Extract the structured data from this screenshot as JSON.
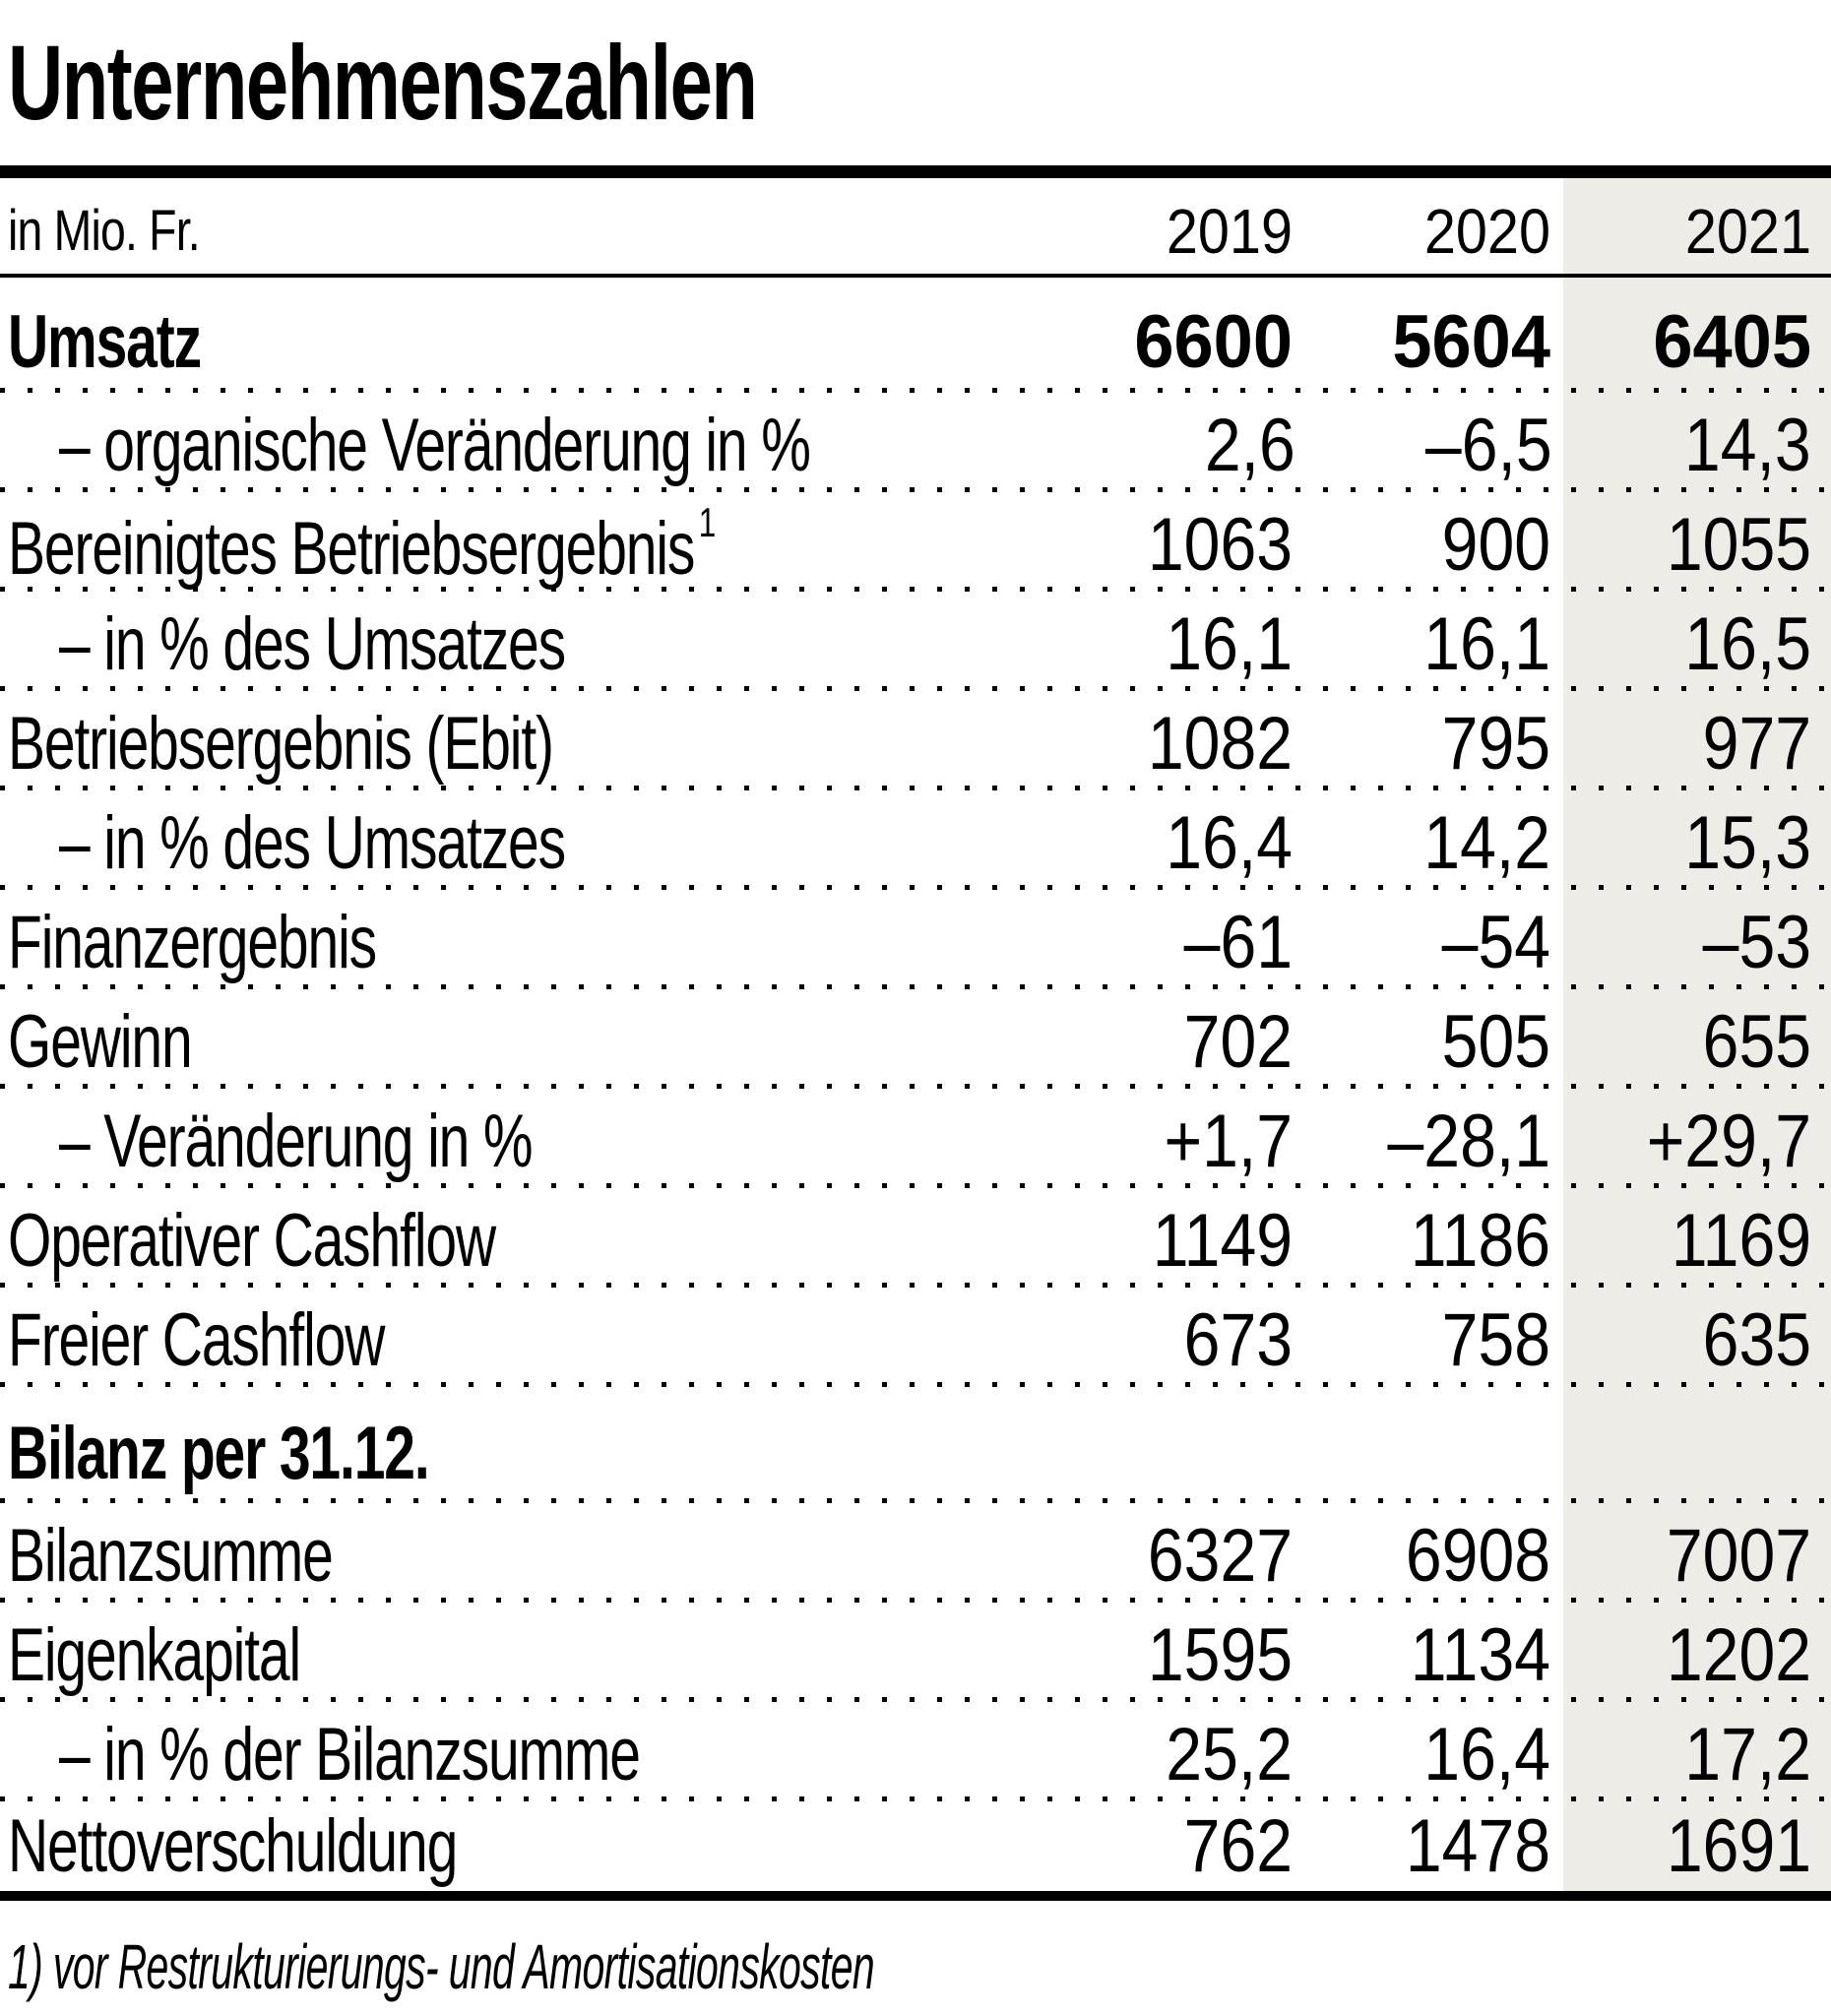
{
  "chart_data": {
    "type": "table",
    "title": "Unternehmenszahlen",
    "unit": "in Mio. Fr.",
    "columns": [
      "2019",
      "2020",
      "2021"
    ],
    "highlight_column": "2021",
    "highlight_color": "#edece6",
    "rows": [
      {
        "label": "Umsatz",
        "values": [
          "6600",
          "5604",
          "6405"
        ],
        "bold": true
      },
      {
        "label": "– organische Veränderung in %",
        "values": [
          "2,6",
          "–6,5",
          "14,3"
        ],
        "indent": true
      },
      {
        "label": "Bereinigtes Betriebsergebnis",
        "sup": "1",
        "values": [
          "1063",
          "900",
          "1055"
        ]
      },
      {
        "label": "– in % des Umsatzes",
        "values": [
          "16,1",
          "16,1",
          "16,5"
        ],
        "indent": true
      },
      {
        "label": "Betriebsergebnis (Ebit)",
        "values": [
          "1082",
          "795",
          "977"
        ]
      },
      {
        "label": "– in % des Umsatzes",
        "values": [
          "16,4",
          "14,2",
          "15,3"
        ],
        "indent": true
      },
      {
        "label": "Finanzergebnis",
        "values": [
          "–61",
          "–54",
          "–53"
        ]
      },
      {
        "label": "Gewinn",
        "values": [
          "702",
          "505",
          "655"
        ]
      },
      {
        "label": "– Veränderung in %",
        "values": [
          "+1,7",
          "–28,1",
          "+29,7"
        ],
        "indent": true
      },
      {
        "label": "Operativer Cashflow",
        "values": [
          "1149",
          "1186",
          "1169"
        ]
      },
      {
        "label": "Freier Cashflow",
        "values": [
          "673",
          "758",
          "635"
        ]
      },
      {
        "label": "Bilanz per 31.12.",
        "values": [
          "",
          "",
          ""
        ],
        "bold": true,
        "section": true
      },
      {
        "label": "Bilanzsumme",
        "values": [
          "6327",
          "6908",
          "7007"
        ]
      },
      {
        "label": "Eigenkapital",
        "values": [
          "1595",
          "1134",
          "1202"
        ]
      },
      {
        "label": "– in % der Bilanzsumme",
        "values": [
          "25,2",
          "16,4",
          "17,2"
        ],
        "indent": true
      },
      {
        "label": "Nettoverschuldung",
        "values": [
          "762",
          "1478",
          "1691"
        ]
      }
    ],
    "footnote": "1) vor Restrukturierungs- und Amortisationskosten"
  }
}
